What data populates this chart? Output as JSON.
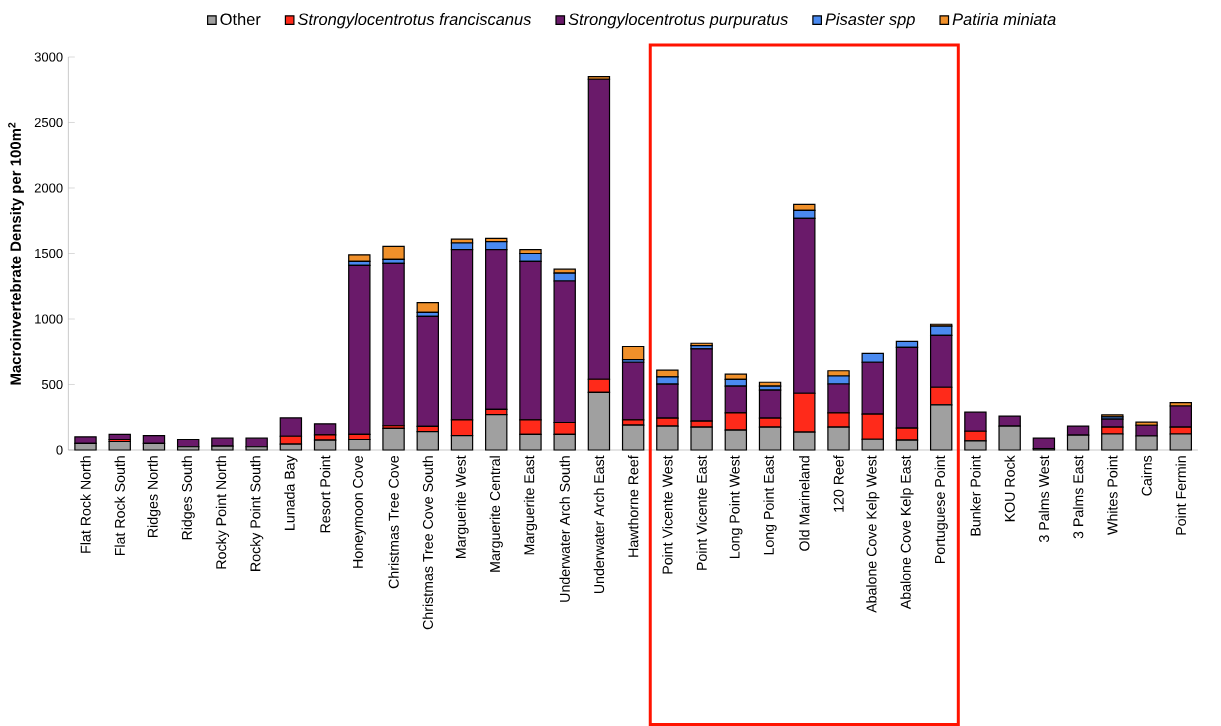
{
  "chart_data": {
    "type": "bar",
    "stacked": true,
    "ylabel": "Macroinvertebrate Density per 100m$^{2}$",
    "categories": [
      "Flat Rock North",
      "Flat Rock South",
      "Ridges North",
      "Ridges South",
      "Rocky Point North",
      "Rocky Point South",
      "Lunada Bay",
      "Resort Point",
      "Honeymoon Cove",
      "Christmas Tree Cove",
      "Christmas Tree Cove South",
      "Marguerite West",
      "Marguerite Central",
      "Marguerite East",
      "Underwater Arch South",
      "Underwater Arch East",
      "Hawthorne Reef",
      "Point Vicente West",
      "Point Vicente East",
      "Long Point West",
      "Long Point East",
      "Old Marineland",
      "120 Reef",
      "Abalone Cove Kelp West",
      "Abalone Cove Kelp East",
      "Portuguese Point",
      "Bunker Point",
      "KOU Rock",
      "3 Palms West",
      "3 Palms East",
      "Whites Point",
      "Cairns",
      "Point Fermin"
    ],
    "series": [
      {
        "name": "Other",
        "color": "#a0a0a0",
        "values": [
          50,
          65,
          50,
          25,
          30,
          25,
          45,
          75,
          80,
          165,
          140,
          110,
          270,
          120,
          120,
          440,
          190,
          183,
          174,
          152,
          174,
          137,
          174,
          82,
          76,
          345,
          70,
          183,
          10,
          113,
          122,
          107,
          122
        ]
      },
      {
        "name": "Strongylocentrotus franciscanus",
        "color": "#ff2a1a",
        "values": [
          0,
          15,
          0,
          0,
          0,
          0,
          60,
          40,
          40,
          20,
          40,
          120,
          40,
          110,
          90,
          100,
          40,
          60,
          46,
          131,
          70,
          296,
          110,
          192,
          91,
          134,
          73,
          0,
          0,
          0,
          52,
          0,
          52
        ]
      },
      {
        "name": "Strongylocentrotus purpuratus",
        "color": "#6a1a6a",
        "values": [
          50,
          40,
          60,
          55,
          60,
          65,
          140,
          85,
          1290,
          1240,
          840,
          1300,
          1220,
          1210,
          1080,
          2290,
          440,
          260,
          552,
          204,
          213,
          1335,
          220,
          396,
          616,
          396,
          146,
          76,
          81,
          70,
          61,
          82,
          162
        ]
      },
      {
        "name": "Pisaster spp",
        "color": "#4a8af0",
        "values": [
          0,
          0,
          0,
          0,
          0,
          0,
          0,
          0,
          30,
          30,
          30,
          50,
          60,
          60,
          60,
          0,
          20,
          55,
          25,
          52,
          30,
          61,
          61,
          67,
          46,
          70,
          0,
          0,
          0,
          0,
          18,
          0,
          0
        ]
      },
      {
        "name": "Patiria miniata",
        "color": "#f0902a",
        "values": [
          0,
          0,
          0,
          0,
          0,
          0,
          0,
          0,
          50,
          100,
          75,
          30,
          25,
          30,
          30,
          20,
          100,
          52,
          18,
          40,
          30,
          46,
          40,
          0,
          0,
          15,
          0,
          0,
          0,
          0,
          15,
          24,
          26
        ]
      }
    ],
    "ylim": [
      0,
      3000
    ],
    "yticks": [
      0,
      500,
      1000,
      1500,
      2000,
      2500,
      3000
    ],
    "legend": "top"
  }
}
